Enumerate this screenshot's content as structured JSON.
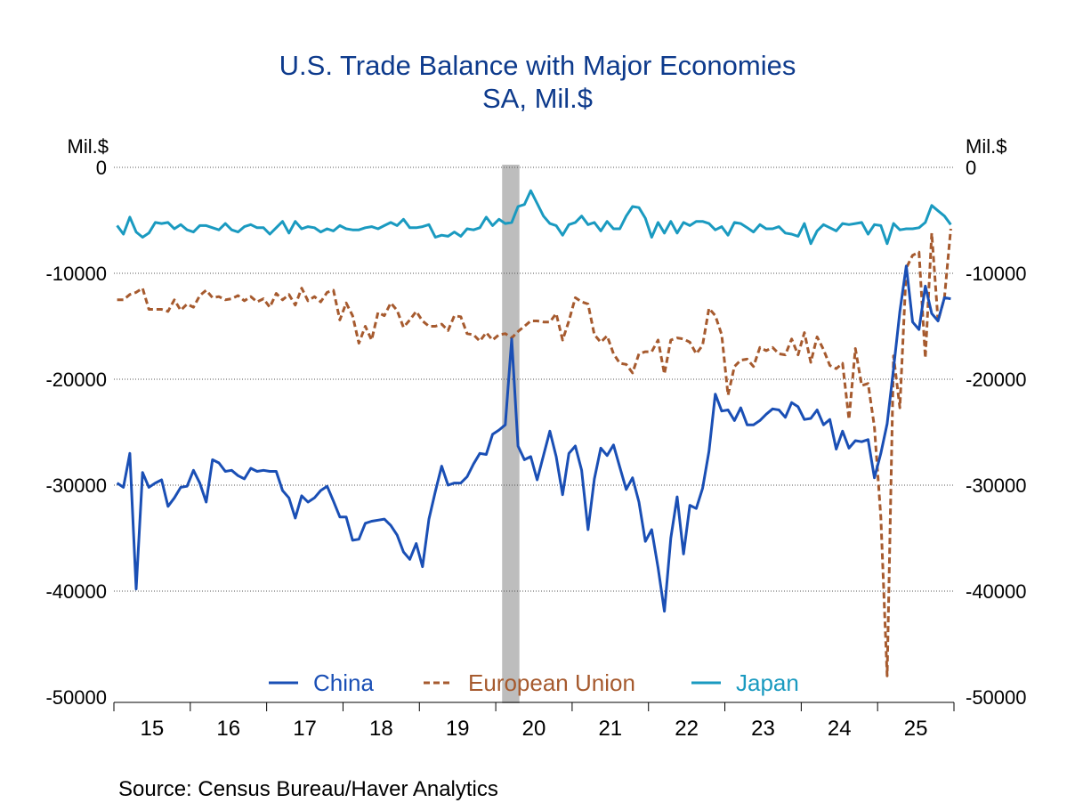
{
  "chart_data": {
    "type": "line",
    "title": "U.S. Trade Balance with Major Economies",
    "subtitle": "SA, Mil.$",
    "ylabel_left": "Mil.$",
    "ylabel_right": "Mil.$",
    "ylim": [
      -50000,
      0
    ],
    "yticks": [
      0,
      -10000,
      -20000,
      -30000,
      -40000,
      -50000
    ],
    "ytick_labels": [
      "0",
      "-10000",
      "-20000",
      "-30000",
      "-40000",
      "-50000"
    ],
    "x_start": "2015-01",
    "frequency": "monthly",
    "xtick_labels": [
      "15",
      "16",
      "17",
      "18",
      "19",
      "20",
      "21",
      "22",
      "23",
      "24",
      "25"
    ],
    "grid": true,
    "legend_position": "bottom",
    "recession_shading": {
      "start": "2020-02",
      "end": "2020-04",
      "color": "#bdbdbd"
    },
    "series": [
      {
        "name": "China",
        "color": "#1a4fb5",
        "style": "solid",
        "values": [
          -29800,
          -30200,
          -27000,
          -39800,
          -28800,
          -30200,
          -29800,
          -29500,
          -32000,
          -31200,
          -30200,
          -30100,
          -28600,
          -29800,
          -31600,
          -27600,
          -27900,
          -28700,
          -28600,
          -29100,
          -29400,
          -28400,
          -28700,
          -28600,
          -28700,
          -28700,
          -30500,
          -31200,
          -33100,
          -31000,
          -31600,
          -31200,
          -30500,
          -30100,
          -31500,
          -33000,
          -33000,
          -35200,
          -35100,
          -33600,
          -33400,
          -33300,
          -33200,
          -33800,
          -34700,
          -36300,
          -37000,
          -35500,
          -37700,
          -33200,
          -30600,
          -28200,
          -30000,
          -29800,
          -29800,
          -29200,
          -28000,
          -27000,
          -27100,
          -25200,
          -24800,
          -24300,
          -16200,
          -26300,
          -27600,
          -27300,
          -29500,
          -27200,
          -24900,
          -27300,
          -30900,
          -27000,
          -26300,
          -28600,
          -34200,
          -29400,
          -26500,
          -27200,
          -26200,
          -28300,
          -30400,
          -29300,
          -31600,
          -35300,
          -34200,
          -37800,
          -41900,
          -35000,
          -31100,
          -36500,
          -31900,
          -32200,
          -30300,
          -26800,
          -21400,
          -23000,
          -22900,
          -23900,
          -22700,
          -24300,
          -24300,
          -23900,
          -23300,
          -22800,
          -22900,
          -23600,
          -22200,
          -22600,
          -23800,
          -23700,
          -22900,
          -24300,
          -23800,
          -26600,
          -24900,
          -26500,
          -25800,
          -25900,
          -25700,
          -29300,
          -27000,
          -24200,
          -19000,
          -13600,
          -9300,
          -14600,
          -15300,
          -11200,
          -13800,
          -14500,
          -12300,
          -12400
        ]
      },
      {
        "name": "European Union",
        "color": "#a65a2e",
        "style": "dashed",
        "values": [
          -12500,
          -12500,
          -12000,
          -11800,
          -11400,
          -13400,
          -13400,
          -13400,
          -13600,
          -12500,
          -13500,
          -12900,
          -13200,
          -12100,
          -11600,
          -12300,
          -12200,
          -12500,
          -12400,
          -12100,
          -12600,
          -12200,
          -12700,
          -12400,
          -13200,
          -11900,
          -12500,
          -12000,
          -13000,
          -11400,
          -12600,
          -12200,
          -12700,
          -11800,
          -11600,
          -14400,
          -12800,
          -14000,
          -16600,
          -15000,
          -16300,
          -13700,
          -14000,
          -12800,
          -13500,
          -15100,
          -14400,
          -13600,
          -14500,
          -15000,
          -15000,
          -14800,
          -15400,
          -14000,
          -14100,
          -15700,
          -15800,
          -16400,
          -15600,
          -16300,
          -15800,
          -15700,
          -16100,
          -15500,
          -15000,
          -14500,
          -14500,
          -14600,
          -14600,
          -13800,
          -16300,
          -14500,
          -12300,
          -12700,
          -12900,
          -15800,
          -16500,
          -15900,
          -17600,
          -18500,
          -18600,
          -19400,
          -17600,
          -17400,
          -17400,
          -16300,
          -19500,
          -16300,
          -16100,
          -16200,
          -16500,
          -17600,
          -16800,
          -13300,
          -14000,
          -15800,
          -21500,
          -18800,
          -18200,
          -18100,
          -18800,
          -17000,
          -17300,
          -17000,
          -17600,
          -17700,
          -16200,
          -17700,
          -15600,
          -18400,
          -16000,
          -17200,
          -18700,
          -19000,
          -18500,
          -23800,
          -17100,
          -20600,
          -20400,
          -24500,
          -33000,
          -48000,
          -17800,
          -22700,
          -9500,
          -8300,
          -8000,
          -18000,
          -6200,
          -14500,
          -12300,
          -5800
        ]
      },
      {
        "name": "Japan",
        "color": "#1a9ac0",
        "style": "solid",
        "values": [
          -5500,
          -6300,
          -4700,
          -6100,
          -6600,
          -6200,
          -5200,
          -5300,
          -5200,
          -5800,
          -5400,
          -5900,
          -6100,
          -5500,
          -5500,
          -5700,
          -5900,
          -5300,
          -5900,
          -6100,
          -5600,
          -5400,
          -5700,
          -5700,
          -6300,
          -5700,
          -5100,
          -6200,
          -5100,
          -5800,
          -5600,
          -5700,
          -6100,
          -5800,
          -6000,
          -5500,
          -5800,
          -5900,
          -5900,
          -5700,
          -5600,
          -5800,
          -5500,
          -5200,
          -5500,
          -4900,
          -5700,
          -5700,
          -5600,
          -5400,
          -6600,
          -6400,
          -6500,
          -6100,
          -6500,
          -5800,
          -5900,
          -5700,
          -4700,
          -5500,
          -4900,
          -5300,
          -5200,
          -3700,
          -3500,
          -2200,
          -3400,
          -4600,
          -5300,
          -5500,
          -6400,
          -5400,
          -5200,
          -4600,
          -5400,
          -5200,
          -6000,
          -5100,
          -5800,
          -5800,
          -4600,
          -3700,
          -3800,
          -4800,
          -6600,
          -5200,
          -6200,
          -5100,
          -6200,
          -5200,
          -5500,
          -5100,
          -5100,
          -5300,
          -5900,
          -5600,
          -6400,
          -5200,
          -5300,
          -5700,
          -6100,
          -5400,
          -5800,
          -5800,
          -5600,
          -6200,
          -6300,
          -6500,
          -5300,
          -7200,
          -6000,
          -5400,
          -5700,
          -6000,
          -5300,
          -5400,
          -5300,
          -5200,
          -6300,
          -5400,
          -5500,
          -7200,
          -5300,
          -5900,
          -5800,
          -5800,
          -5700,
          -5200,
          -3600,
          -4100,
          -4600,
          -5400
        ]
      }
    ],
    "source": "Source:  Census Bureau/Haver Analytics"
  }
}
